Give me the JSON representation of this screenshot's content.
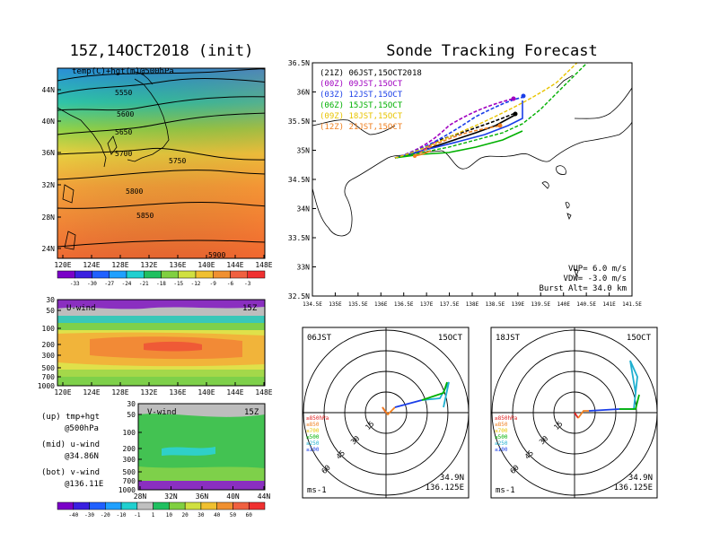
{
  "titles": {
    "main": "Sonde Tracking Forecast",
    "init": "15Z,14OCT2018 (init)"
  },
  "upper_panel": {
    "label": "temp(C)+hgt(m)@500hPa",
    "lat_ticks": [
      "44N",
      "40N",
      "36N",
      "32N",
      "28N",
      "24N"
    ],
    "lon_ticks": [
      "120E",
      "124E",
      "128E",
      "132E",
      "136E",
      "140E",
      "144E",
      "148E"
    ],
    "contours": [
      "5550",
      "5600",
      "5650",
      "5700",
      "5750",
      "5800",
      "5850",
      "5900"
    ],
    "colorbar_ticks": [
      "-33",
      "-30",
      "-27",
      "-24",
      "-21",
      "-18",
      "-15",
      "-12",
      "-9",
      "-6",
      "-3"
    ],
    "colorbar_colors": [
      "#7a00c8",
      "#3a20e0",
      "#2060ff",
      "#20a0ff",
      "#20d0d0",
      "#20c060",
      "#80d040",
      "#d0e040",
      "#f0c030",
      "#f09030",
      "#f06040",
      "#f03030"
    ]
  },
  "uwind_panel": {
    "label": "U-wind",
    "time": "15Z",
    "p_ticks": [
      "30",
      "50",
      "100",
      "200",
      "300",
      "500",
      "700",
      "1000"
    ],
    "lon_ticks": [
      "120E",
      "124E",
      "128E",
      "132E",
      "136E",
      "140E",
      "144E",
      "148E"
    ]
  },
  "vwind_panel": {
    "label": "V-wind",
    "time": "15Z",
    "p_ticks": [
      "30",
      "50",
      "100",
      "200",
      "300",
      "500",
      "700",
      "1000"
    ],
    "lat_ticks": [
      "28N",
      "32N",
      "36N",
      "40N",
      "44N"
    ],
    "colorbar_ticks": [
      "-40",
      "-30",
      "-20",
      "-10",
      "-1",
      "1",
      "10",
      "20",
      "30",
      "40",
      "50",
      "60"
    ],
    "colorbar_colors": [
      "#7a00c8",
      "#3a20e0",
      "#2060ff",
      "#20a0ff",
      "#20d0d0",
      "#c0c0c0",
      "#20c060",
      "#80d040",
      "#d0e040",
      "#f0c030",
      "#f09030",
      "#f06040",
      "#f03030"
    ]
  },
  "notes": {
    "up": "(up) tmp+hgt",
    "up2": "@500hPa",
    "mid": "(mid) u-wind",
    "mid2": "@34.86N",
    "bot": "(bot) v-wind",
    "bot2": "@136.11E"
  },
  "track_map": {
    "lat_ticks": [
      "36.5N",
      "36N",
      "35.5N",
      "35N",
      "34.5N",
      "34N",
      "33.5N",
      "33N",
      "32.5N"
    ],
    "lon_ticks": [
      "134.5E",
      "135E",
      "135.5E",
      "136E",
      "136.5E",
      "137E",
      "137.5E",
      "138E",
      "138.5E",
      "139E",
      "139.5E",
      "140E",
      "140.5E",
      "141E",
      "141.5E"
    ],
    "legend": [
      {
        "text": "(21Z)  06JST,15OCT2018",
        "color": "#000000"
      },
      {
        "text": "(00Z)  09JST,15OCT",
        "color": "#a000c0"
      },
      {
        "text": "(03Z)  12JST,15OCT",
        "color": "#1a3ee8"
      },
      {
        "text": "(06Z)  15JST,15OCT",
        "color": "#00b000"
      },
      {
        "text": "(09Z)  18JST,15OCT",
        "color": "#e8c400"
      },
      {
        "text": "(12Z)  21JST,15OCT",
        "color": "#f08020"
      }
    ],
    "info": {
      "vup": "VUP=  6.0 m/s",
      "vdw": "VDW= -3.0 m/s",
      "burst": "Burst Alt=  34.0 km"
    }
  },
  "hodographs": [
    {
      "time": "06JST",
      "date": "15OCT",
      "lat": "34.9N",
      "lon": "136.125E",
      "unit": "ms-1",
      "rings": [
        "15",
        "30",
        "45",
        "60"
      ],
      "legend": [
        "≥850hPa",
        "≤850",
        "≤700",
        "≤500",
        "≤250",
        "≤100"
      ],
      "legend_colors": [
        "#e02020",
        "#f08020",
        "#e8c400",
        "#00b000",
        "#20b0d0",
        "#1a3ee8"
      ]
    },
    {
      "time": "18JST",
      "date": "15OCT",
      "lat": "34.9N",
      "lon": "136.125E",
      "unit": "ms-1",
      "rings": [
        "15",
        "30",
        "45",
        "60"
      ],
      "legend": [
        "≥850hPa",
        "≤850",
        "≤700",
        "≤500",
        "≤250",
        "≤100"
      ],
      "legend_colors": [
        "#e02020",
        "#f08020",
        "#e8c400",
        "#00b000",
        "#20b0d0",
        "#1a3ee8"
      ]
    }
  ]
}
